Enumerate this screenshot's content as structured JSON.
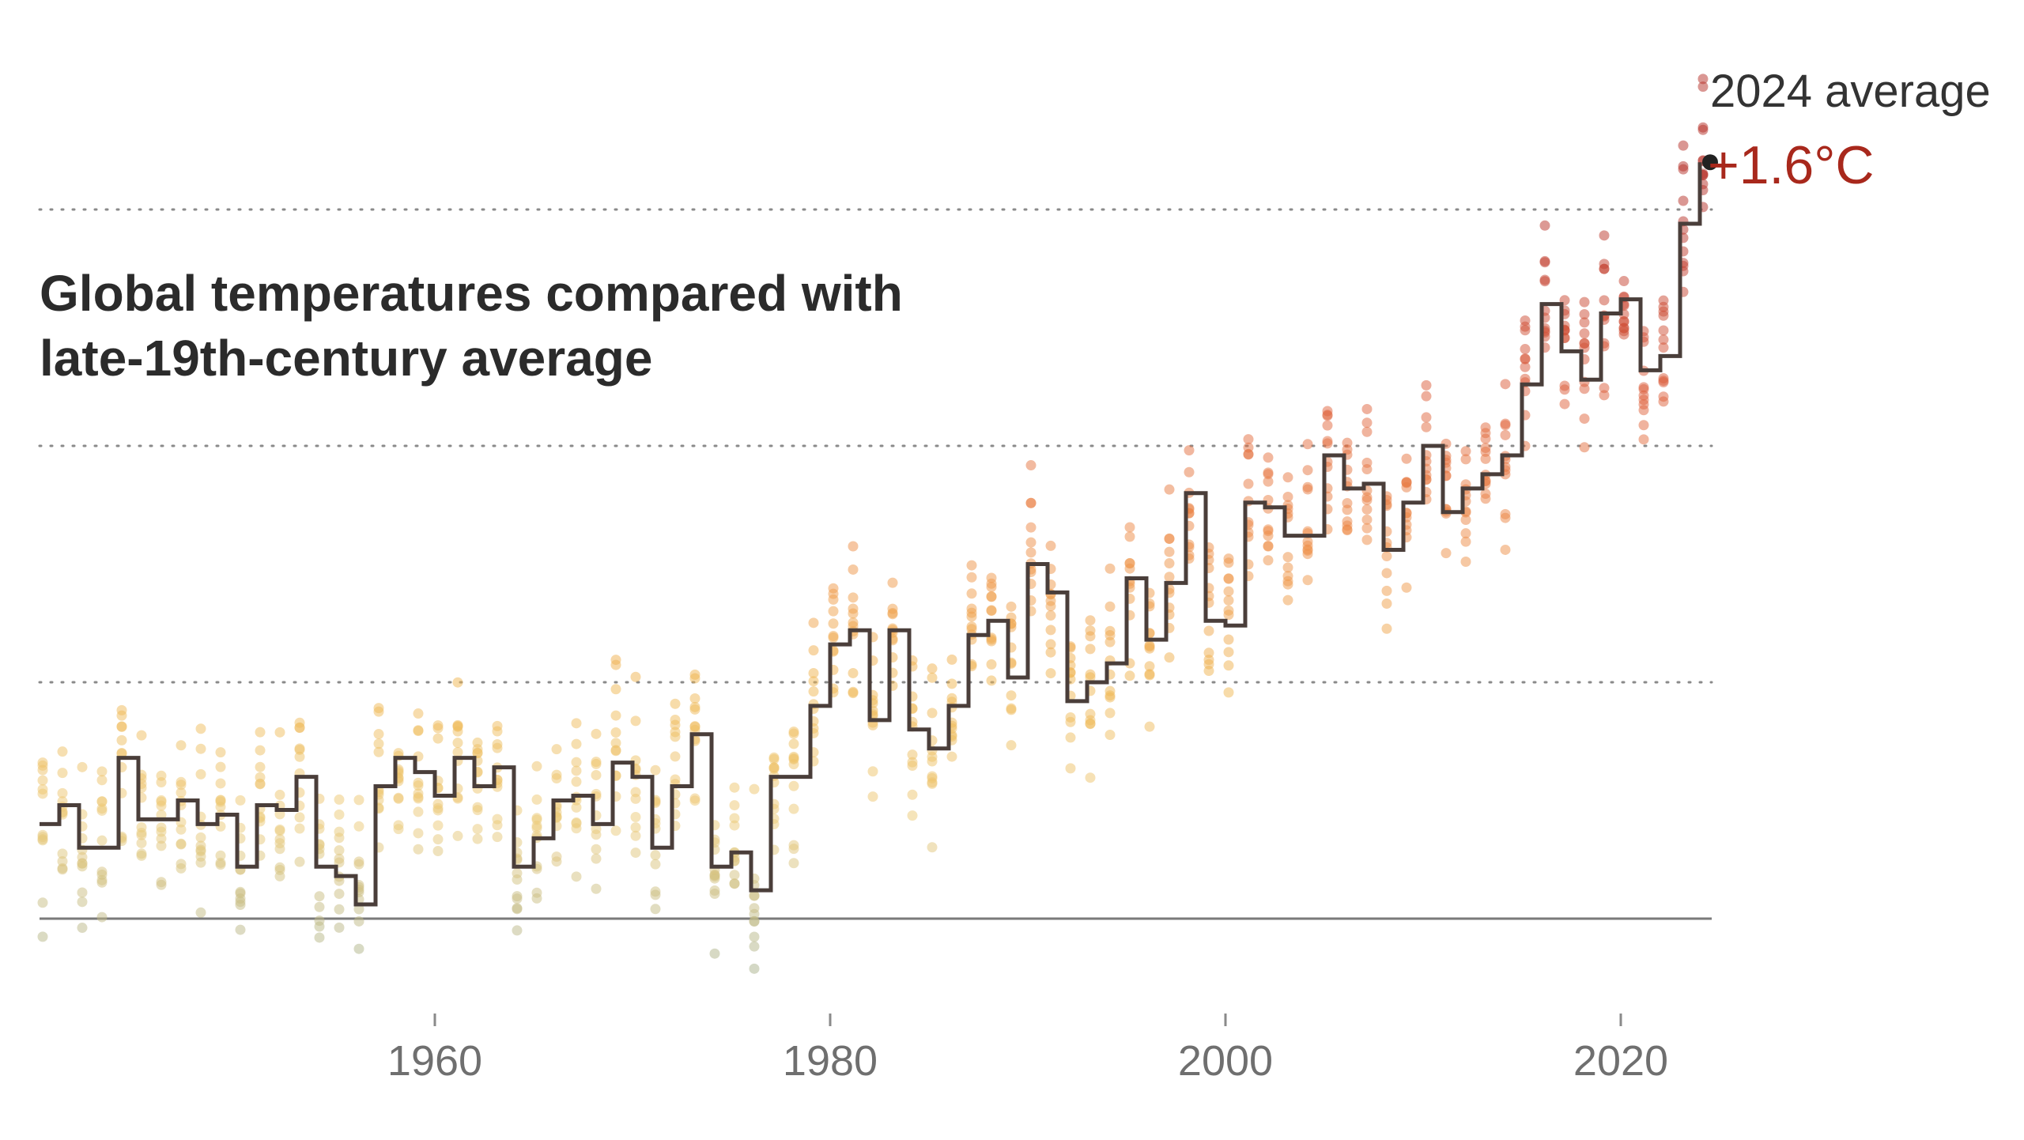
{
  "chart_data": {
    "type": "line",
    "title": "Global temperatures compared with late-19th-century average",
    "xlabel": "",
    "ylabel": "",
    "xlim": [
      1940,
      2025
    ],
    "ylim": [
      0,
      1.6
    ],
    "x_ticks": [
      1960,
      1980,
      2000,
      2020
    ],
    "gridlines_y": [
      0.5,
      1.0,
      1.5
    ],
    "baseline_y": 0,
    "colors": {
      "line": "#4a3e3a",
      "baseline": "#7a7a7a",
      "grid": "#8a8a8a",
      "annotation": "#a8281c",
      "latest_point": "#222222"
    },
    "annotation": {
      "label": "2024 average",
      "value_text": "+1.6°C",
      "year": 2024,
      "value": 1.6
    },
    "series": [
      {
        "type": "step",
        "x": [
          1940,
          1941,
          1942,
          1943,
          1944,
          1945,
          1946,
          1947,
          1948,
          1949,
          1950,
          1951,
          1952,
          1953,
          1954,
          1955,
          1956,
          1957,
          1958,
          1959,
          1960,
          1961,
          1962,
          1963,
          1964,
          1965,
          1966,
          1967,
          1968,
          1969,
          1970,
          1971,
          1972,
          1973,
          1974,
          1975,
          1976,
          1977,
          1978,
          1979,
          1980,
          1981,
          1982,
          1983,
          1984,
          1985,
          1986,
          1987,
          1988,
          1989,
          1990,
          1991,
          1992,
          1993,
          1994,
          1995,
          1996,
          1997,
          1998,
          1999,
          2000,
          2001,
          2002,
          2003,
          2004,
          2005,
          2006,
          2007,
          2008,
          2009,
          2010,
          2011,
          2012,
          2013,
          2014,
          2015,
          2016,
          2017,
          2018,
          2019,
          2020,
          2021,
          2022,
          2023,
          2024
        ],
        "values": [
          0.2,
          0.24,
          0.15,
          0.15,
          0.34,
          0.21,
          0.21,
          0.25,
          0.2,
          0.22,
          0.11,
          0.24,
          0.23,
          0.3,
          0.11,
          0.09,
          0.03,
          0.28,
          0.34,
          0.31,
          0.26,
          0.34,
          0.28,
          0.32,
          0.11,
          0.17,
          0.25,
          0.26,
          0.2,
          0.33,
          0.3,
          0.15,
          0.28,
          0.39,
          0.11,
          0.14,
          0.06,
          0.3,
          0.3,
          0.45,
          0.58,
          0.61,
          0.42,
          0.61,
          0.4,
          0.36,
          0.45,
          0.6,
          0.63,
          0.51,
          0.75,
          0.69,
          0.46,
          0.5,
          0.54,
          0.72,
          0.59,
          0.71,
          0.9,
          0.63,
          0.62,
          0.88,
          0.87,
          0.81,
          0.81,
          0.98,
          0.91,
          0.92,
          0.78,
          0.88,
          1.0,
          0.86,
          0.91,
          0.94,
          0.98,
          1.13,
          1.3,
          1.2,
          1.14,
          1.28,
          1.31,
          1.16,
          1.19,
          1.47,
          1.6
        ]
      }
    ]
  }
}
